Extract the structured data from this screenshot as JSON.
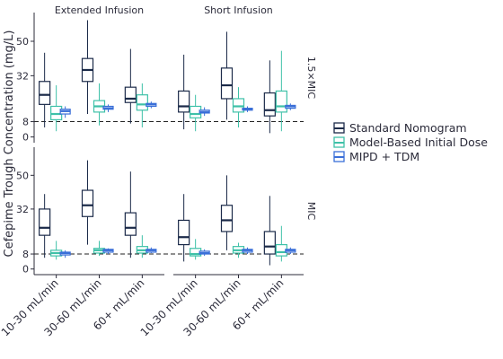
{
  "chart_data": {
    "type": "boxplot",
    "ylabel": "Cefepime Trough Concentration (mg/L)",
    "facet_columns": [
      "Extended Infusion",
      "Short Infusion"
    ],
    "facet_rows": [
      "1.5×MIC",
      "MIC"
    ],
    "categories": [
      "10-30 mL/min",
      "30-60 mL/min",
      "60+ mL/min"
    ],
    "y_ticks": [
      0,
      8,
      32,
      50
    ],
    "ylim": [
      -3,
      65
    ],
    "reference_line": 8,
    "series": [
      {
        "name": "Standard Nomogram",
        "color": "#1b2a49"
      },
      {
        "name": "Model-Based Initial Dose",
        "color": "#3ec1a8"
      },
      {
        "name": "MIPD + TDM",
        "color": "#3a6fd8"
      }
    ],
    "legend_position": "right",
    "panels": [
      {
        "row": "1.5×MIC",
        "column": "Extended Infusion",
        "groups": [
          {
            "category": "10-30 mL/min",
            "boxes": [
              [
                5,
                17,
                22,
                29,
                44
              ],
              [
                3,
                9,
                12,
                16,
                27
              ],
              [
                10,
                12,
                13.5,
                14.5,
                16
              ]
            ]
          },
          {
            "category": "30-60 mL/min",
            "boxes": [
              [
                12,
                29,
                35,
                41,
                61
              ],
              [
                6,
                13,
                16,
                19,
                28
              ],
              [
                13,
                14.5,
                15,
                16,
                17
              ]
            ]
          },
          {
            "category": "60+ mL/min",
            "boxes": [
              [
                7,
                18,
                20,
                26,
                46
              ],
              [
                5,
                14,
                17,
                22,
                28
              ],
              [
                15,
                16,
                17,
                17.5,
                18.5
              ]
            ]
          }
        ]
      },
      {
        "row": "1.5×MIC",
        "column": "Short Infusion",
        "groups": [
          {
            "category": "10-30 mL/min",
            "boxes": [
              [
                4,
                13,
                16,
                24,
                43
              ],
              [
                3,
                10,
                12,
                16,
                22
              ],
              [
                11,
                12.5,
                13,
                14,
                15.5
              ]
            ]
          },
          {
            "category": "30-60 mL/min",
            "boxes": [
              [
                9,
                20,
                27,
                36,
                55
              ],
              [
                5,
                13,
                16,
                20,
                26
              ],
              [
                13,
                14,
                14.5,
                15,
                16
              ]
            ]
          },
          {
            "category": "60+ mL/min",
            "boxes": [
              [
                2,
                11,
                14,
                23,
                40
              ],
              [
                3,
                13,
                16,
                24,
                45
              ],
              [
                14,
                15,
                16,
                16.5,
                17.5
              ]
            ]
          }
        ]
      },
      {
        "row": "MIC",
        "column": "Extended Infusion",
        "groups": [
          {
            "category": "10-30 mL/min",
            "boxes": [
              [
                6,
                18,
                22,
                32,
                40
              ],
              [
                5,
                7,
                8.5,
                10,
                15
              ],
              [
                6,
                7.5,
                8.5,
                9,
                10
              ]
            ]
          },
          {
            "category": "30-60 mL/min",
            "boxes": [
              [
                13,
                28,
                34,
                42,
                58
              ],
              [
                7,
                8.5,
                10,
                11,
                15
              ],
              [
                8,
                9,
                10,
                10.5,
                11
              ]
            ]
          },
          {
            "category": "60+ mL/min",
            "boxes": [
              [
                6,
                18,
                22,
                30,
                52
              ],
              [
                6,
                8.5,
                10,
                12,
                18
              ],
              [
                8.5,
                9,
                10,
                10.5,
                11.5
              ]
            ]
          }
        ]
      },
      {
        "row": "MIC",
        "column": "Short Infusion",
        "groups": [
          {
            "category": "10-30 mL/min",
            "boxes": [
              [
                4,
                13,
                17,
                26,
                40
              ],
              [
                5,
                7,
                8,
                11,
                16
              ],
              [
                7,
                8,
                8.5,
                9.5,
                10.5
              ]
            ]
          },
          {
            "category": "30-60 mL/min",
            "boxes": [
              [
                10,
                20,
                26,
                34,
                50
              ],
              [
                6,
                8.5,
                10,
                12,
                14
              ],
              [
                8,
                9,
                10,
                10.5,
                11.5
              ]
            ]
          },
          {
            "category": "60+ mL/min",
            "boxes": [
              [
                2,
                8,
                12,
                20,
                39
              ],
              [
                4,
                7,
                9,
                13,
                23
              ],
              [
                8,
                9,
                10,
                10.5,
                11.5
              ]
            ]
          }
        ]
      }
    ]
  }
}
